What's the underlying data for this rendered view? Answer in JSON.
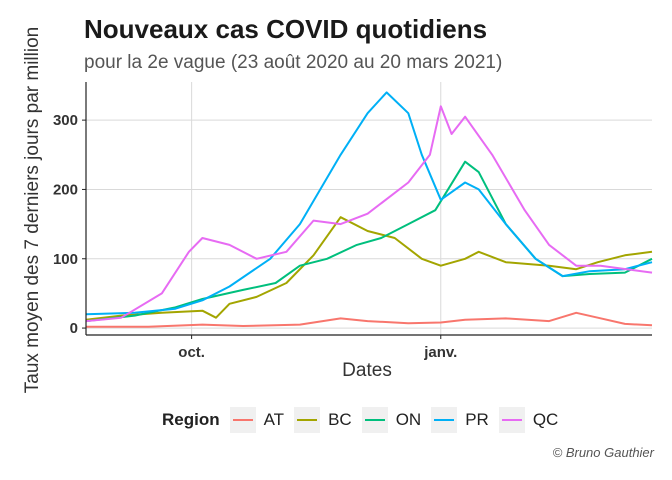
{
  "chart_data": {
    "type": "line",
    "title": "Nouveaux cas COVID quotidiens",
    "subtitle": "pour la 2e vague (23 août 2020 au 20 mars 2021)",
    "xlabel": "Dates",
    "ylabel": "Taux moyen des 7 derniers jours par million",
    "xlim": [
      "2020-08-23",
      "2021-03-20"
    ],
    "ylim": [
      -10,
      355
    ],
    "x_ticks": [
      {
        "date": "2020-10-01",
        "label": "oct."
      },
      {
        "date": "2021-01-01",
        "label": "janv."
      }
    ],
    "y_ticks": [
      0,
      100,
      200,
      300
    ],
    "grid": true,
    "legend_title": "Region",
    "legend_position": "bottom",
    "caption": "© Bruno Gauthier",
    "series": [
      {
        "name": "AT",
        "color": "#F8766D",
        "points": [
          [
            "2020-08-23",
            2
          ],
          [
            "2020-09-15",
            2
          ],
          [
            "2020-10-05",
            5
          ],
          [
            "2020-10-20",
            3
          ],
          [
            "2020-11-10",
            5
          ],
          [
            "2020-11-25",
            14
          ],
          [
            "2020-12-05",
            10
          ],
          [
            "2020-12-20",
            7
          ],
          [
            "2021-01-01",
            8
          ],
          [
            "2021-01-10",
            12
          ],
          [
            "2021-01-25",
            14
          ],
          [
            "2021-02-10",
            10
          ],
          [
            "2021-02-20",
            22
          ],
          [
            "2021-02-28",
            15
          ],
          [
            "2021-03-10",
            6
          ],
          [
            "2021-03-20",
            4
          ]
        ]
      },
      {
        "name": "BC",
        "color": "#A3A500",
        "points": [
          [
            "2020-08-23",
            12
          ],
          [
            "2020-09-05",
            18
          ],
          [
            "2020-09-20",
            22
          ],
          [
            "2020-10-05",
            25
          ],
          [
            "2020-10-10",
            15
          ],
          [
            "2020-10-15",
            35
          ],
          [
            "2020-10-25",
            45
          ],
          [
            "2020-11-05",
            65
          ],
          [
            "2020-11-15",
            105
          ],
          [
            "2020-11-25",
            160
          ],
          [
            "2020-12-05",
            140
          ],
          [
            "2020-12-15",
            130
          ],
          [
            "2020-12-25",
            100
          ],
          [
            "2021-01-01",
            90
          ],
          [
            "2021-01-10",
            100
          ],
          [
            "2021-01-15",
            110
          ],
          [
            "2021-01-25",
            95
          ],
          [
            "2021-02-10",
            90
          ],
          [
            "2021-02-20",
            85
          ],
          [
            "2021-02-28",
            95
          ],
          [
            "2021-03-10",
            105
          ],
          [
            "2021-03-20",
            110
          ]
        ]
      },
      {
        "name": "ON",
        "color": "#00BF7D",
        "points": [
          [
            "2020-08-23",
            10
          ],
          [
            "2020-09-10",
            18
          ],
          [
            "2020-09-25",
            30
          ],
          [
            "2020-10-05",
            42
          ],
          [
            "2020-10-20",
            55
          ],
          [
            "2020-11-01",
            65
          ],
          [
            "2020-11-10",
            90
          ],
          [
            "2020-11-20",
            100
          ],
          [
            "2020-12-01",
            120
          ],
          [
            "2020-12-10",
            130
          ],
          [
            "2020-12-20",
            150
          ],
          [
            "2020-12-30",
            170
          ],
          [
            "2021-01-10",
            240
          ],
          [
            "2021-01-15",
            225
          ],
          [
            "2021-01-25",
            150
          ],
          [
            "2021-02-05",
            100
          ],
          [
            "2021-02-15",
            75
          ],
          [
            "2021-02-25",
            78
          ],
          [
            "2021-03-10",
            80
          ],
          [
            "2021-03-20",
            100
          ]
        ]
      },
      {
        "name": "PR",
        "color": "#00B0F6",
        "points": [
          [
            "2020-08-23",
            20
          ],
          [
            "2020-09-10",
            22
          ],
          [
            "2020-09-25",
            28
          ],
          [
            "2020-10-05",
            40
          ],
          [
            "2020-10-15",
            60
          ],
          [
            "2020-10-30",
            100
          ],
          [
            "2020-11-10",
            150
          ],
          [
            "2020-11-25",
            250
          ],
          [
            "2020-12-05",
            310
          ],
          [
            "2020-12-12",
            340
          ],
          [
            "2020-12-20",
            310
          ],
          [
            "2020-12-25",
            250
          ],
          [
            "2021-01-01",
            185
          ],
          [
            "2021-01-10",
            210
          ],
          [
            "2021-01-15",
            200
          ],
          [
            "2021-01-25",
            150
          ],
          [
            "2021-02-05",
            100
          ],
          [
            "2021-02-15",
            75
          ],
          [
            "2021-02-25",
            82
          ],
          [
            "2021-03-10",
            85
          ],
          [
            "2021-03-20",
            95
          ]
        ]
      },
      {
        "name": "QC",
        "color": "#E76BF3",
        "points": [
          [
            "2020-08-23",
            10
          ],
          [
            "2020-09-05",
            15
          ],
          [
            "2020-09-20",
            50
          ],
          [
            "2020-09-30",
            110
          ],
          [
            "2020-10-05",
            130
          ],
          [
            "2020-10-15",
            120
          ],
          [
            "2020-10-25",
            100
          ],
          [
            "2020-11-05",
            110
          ],
          [
            "2020-11-15",
            155
          ],
          [
            "2020-11-25",
            150
          ],
          [
            "2020-12-05",
            165
          ],
          [
            "2020-12-20",
            210
          ],
          [
            "2020-12-28",
            250
          ],
          [
            "2021-01-01",
            320
          ],
          [
            "2021-01-05",
            280
          ],
          [
            "2021-01-10",
            305
          ],
          [
            "2021-01-20",
            250
          ],
          [
            "2021-02-01",
            170
          ],
          [
            "2021-02-10",
            120
          ],
          [
            "2021-02-20",
            90
          ],
          [
            "2021-03-01",
            90
          ],
          [
            "2021-03-20",
            80
          ]
        ]
      }
    ]
  }
}
